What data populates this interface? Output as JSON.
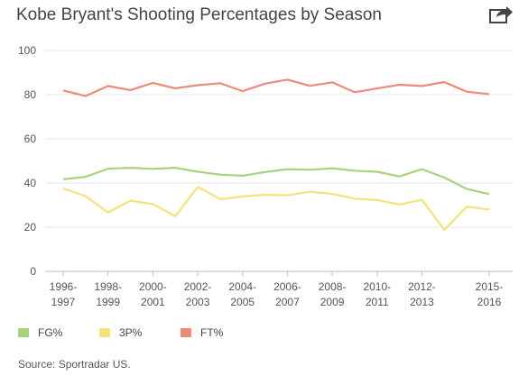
{
  "title": "Kobe Bryant's Shooting Percentages by Season",
  "share_icon": "share-icon",
  "source": "Source: Sportradar US.",
  "legend": [
    {
      "label": "FG%",
      "color": "#a8d37b"
    },
    {
      "label": "3P%",
      "color": "#f5e27a"
    },
    {
      "label": "FT%",
      "color": "#ee8a78"
    }
  ],
  "chart_data": {
    "type": "line",
    "title": "Kobe Bryant's Shooting Percentages by Season",
    "xlabel": "",
    "ylabel": "",
    "ylim": [
      0,
      100
    ],
    "yticks": [
      0,
      20,
      40,
      60,
      80,
      100
    ],
    "grid": true,
    "legend_position": "bottom-left",
    "x_tick_labels": [
      {
        "index": 0,
        "line1": "1996-",
        "line2": "1997"
      },
      {
        "index": 2,
        "line1": "1998-",
        "line2": "1999"
      },
      {
        "index": 4,
        "line1": "2000-",
        "line2": "2001"
      },
      {
        "index": 6,
        "line1": "2002-",
        "line2": "2003"
      },
      {
        "index": 8,
        "line1": "2004-",
        "line2": "2005"
      },
      {
        "index": 10,
        "line1": "2006-",
        "line2": "2007"
      },
      {
        "index": 12,
        "line1": "2008-",
        "line2": "2009"
      },
      {
        "index": 14,
        "line1": "2010-",
        "line2": "2011"
      },
      {
        "index": 16,
        "line1": "2012-",
        "line2": "2013"
      },
      {
        "index": 19,
        "line1": "2015-",
        "line2": "2016"
      }
    ],
    "point_count": 20,
    "series": [
      {
        "name": "FG%",
        "color": "#a8d37b",
        "values": [
          41.7,
          42.8,
          46.5,
          46.9,
          46.4,
          46.9,
          45.1,
          43.8,
          43.3,
          45.0,
          46.3,
          46.0,
          46.7,
          45.6,
          45.1,
          43.0,
          46.3,
          42.5,
          37.3,
          35.0
        ]
      },
      {
        "name": "3P%",
        "color": "#f5e27a",
        "values": [
          37.5,
          34.1,
          26.7,
          32.0,
          30.5,
          25.0,
          38.3,
          32.7,
          33.9,
          34.7,
          34.4,
          36.1,
          35.1,
          32.9,
          32.3,
          30.3,
          32.4,
          18.8,
          29.3,
          28.0
        ]
      },
      {
        "name": "FT%",
        "color": "#ee8a78",
        "values": [
          81.9,
          79.4,
          83.9,
          82.1,
          85.3,
          82.9,
          84.3,
          85.2,
          81.6,
          85.0,
          86.8,
          84.0,
          85.6,
          81.1,
          82.8,
          84.5,
          83.9,
          85.7,
          81.3,
          80.3
        ]
      }
    ]
  }
}
